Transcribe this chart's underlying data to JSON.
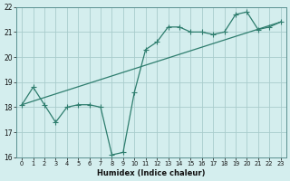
{
  "xlabel": "Humidex (Indice chaleur)",
  "background_color": "#d4eeee",
  "grid_color": "#a8cccc",
  "line_color": "#2e7d6e",
  "xlim_min": -0.5,
  "xlim_max": 23.5,
  "ylim_min": 16,
  "ylim_max": 22,
  "line1_x": [
    0,
    1,
    2,
    3,
    4,
    5,
    6,
    7,
    8,
    9,
    10,
    11,
    12,
    13,
    14,
    15,
    16,
    17,
    18,
    19,
    20,
    21,
    22,
    23
  ],
  "line1_y": [
    18.1,
    18.8,
    18.1,
    17.4,
    18.0,
    18.1,
    18.1,
    18.0,
    16.1,
    16.2,
    18.6,
    20.3,
    20.6,
    21.2,
    21.2,
    21.0,
    21.0,
    20.9,
    21.0,
    21.7,
    21.8,
    21.1,
    21.2,
    21.4
  ],
  "line2_x": [
    0,
    23
  ],
  "line2_y": [
    18.1,
    21.4
  ],
  "marker_style": "+",
  "marker_size": 4.0,
  "line_width": 0.9
}
